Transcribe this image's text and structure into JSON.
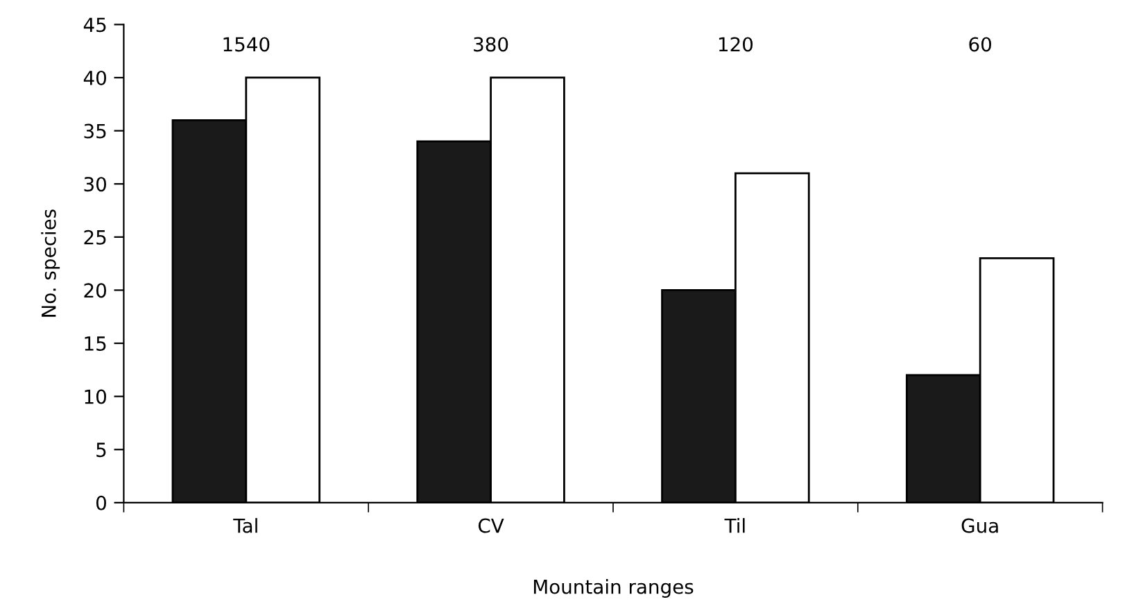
{
  "chart_data": {
    "type": "bar",
    "xlabel": "Mountain ranges",
    "ylabel": "No. species",
    "categories": [
      "Tal",
      "CV",
      "Til",
      "Gua"
    ],
    "series": [
      {
        "color": "#1a1a1a",
        "values": [
          36,
          34,
          20,
          12
        ]
      },
      {
        "color": "#ffffff",
        "values": [
          40,
          40,
          31,
          23
        ]
      }
    ],
    "ylim": [
      0,
      45
    ],
    "yticks": [
      0,
      5,
      10,
      15,
      20,
      25,
      30,
      35,
      40,
      45
    ],
    "grid": false,
    "legend": false,
    "annotations": [
      "1540",
      "380",
      "120",
      "60"
    ]
  }
}
